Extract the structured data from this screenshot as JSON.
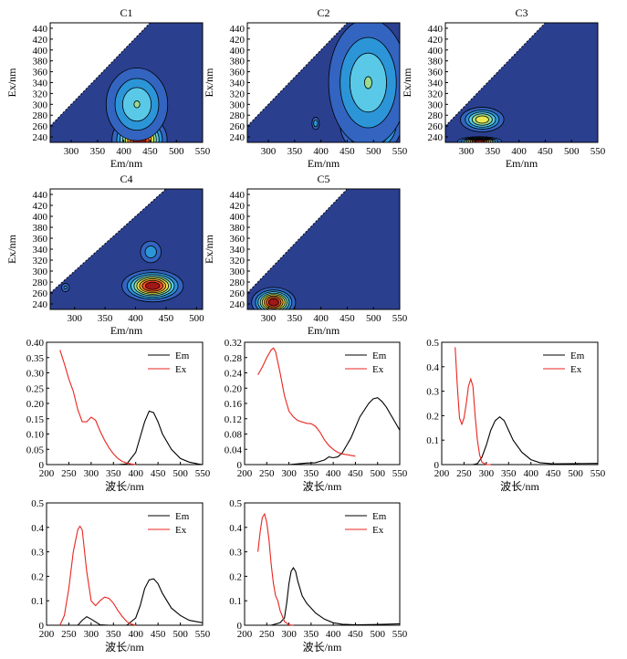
{
  "colors": {
    "background": "#2b3f8f",
    "em_line": "#000000",
    "ex_line": "#e8251f",
    "contour_line": "#000000",
    "contour_levels": [
      "#2b3f8f",
      "#3364c0",
      "#2c95d8",
      "#5ac9e8",
      "#9bdc8f",
      "#eae84f",
      "#f7a02d",
      "#ef4a23",
      "#a01818"
    ]
  },
  "eem_panels": [
    {
      "title": "C1",
      "xlabel": "Em/nm",
      "ylabel": "Ex/nm",
      "xticks": [
        "300",
        "350",
        "400",
        "450",
        "500",
        "550"
      ],
      "yticks": [
        "240",
        "260",
        "280",
        "300",
        "320",
        "340",
        "360",
        "380",
        "400",
        "420",
        "440"
      ],
      "xlim": [
        260,
        550
      ],
      "ylim": [
        230,
        450
      ],
      "peaks": [
        {
          "em": 430,
          "ex": 235,
          "intensity": 1.0,
          "sx": 25,
          "sy": 22
        },
        {
          "em": 425,
          "ex": 300,
          "intensity": 0.45,
          "sx": 35,
          "sy": 40
        }
      ]
    },
    {
      "title": "C2",
      "xlabel": "Em/nm",
      "ylabel": "Ex/nm",
      "xticks": [
        "300",
        "350",
        "400",
        "450",
        "500",
        "550"
      ],
      "yticks": [
        "240",
        "260",
        "280",
        "300",
        "320",
        "340",
        "360",
        "380",
        "400",
        "420",
        "440"
      ],
      "xlim": [
        260,
        550
      ],
      "ylim": [
        230,
        450
      ],
      "peaks": [
        {
          "em": 495,
          "ex": 265,
          "intensity": 1.0,
          "sx": 28,
          "sy": 28
        },
        {
          "em": 490,
          "ex": 340,
          "intensity": 0.45,
          "sx": 45,
          "sy": 70
        },
        {
          "em": 390,
          "ex": 265,
          "intensity": 0.3,
          "sx": 5,
          "sy": 8
        }
      ]
    },
    {
      "title": "C3",
      "xlabel": "Em/nm",
      "ylabel": "Ex/nm",
      "xticks": [
        "300",
        "350",
        "400",
        "450",
        "500",
        "550"
      ],
      "yticks": [
        "240",
        "260",
        "280",
        "300",
        "320",
        "340",
        "360",
        "380",
        "400",
        "420",
        "440"
      ],
      "xlim": [
        260,
        550
      ],
      "ylim": [
        230,
        450
      ],
      "peaks": [
        {
          "em": 330,
          "ex": 272,
          "intensity": 0.65,
          "sx": 22,
          "sy": 12
        },
        {
          "em": 325,
          "ex": 232,
          "intensity": 1.0,
          "sx": 20,
          "sy": 4
        }
      ]
    },
    {
      "title": "C4",
      "xlabel": "Em/nm",
      "ylabel": "Ex/nm",
      "xticks": [
        "300",
        "350",
        "400",
        "450",
        "500"
      ],
      "yticks": [
        "240",
        "260",
        "280",
        "300",
        "320",
        "340",
        "360",
        "380",
        "400",
        "420",
        "440"
      ],
      "xlim": [
        260,
        510
      ],
      "ylim": [
        230,
        450
      ],
      "peaks": [
        {
          "em": 428,
          "ex": 273,
          "intensity": 1.0,
          "sx": 24,
          "sy": 14
        },
        {
          "em": 425,
          "ex": 335,
          "intensity": 0.3,
          "sx": 12,
          "sy": 14
        },
        {
          "em": 285,
          "ex": 270,
          "intensity": 0.25,
          "sx": 5,
          "sy": 6
        }
      ]
    },
    {
      "title": "C5",
      "xlabel": "Em/nm",
      "ylabel": "Ex/nm",
      "xticks": [
        "300",
        "350",
        "400",
        "450",
        "500",
        "550"
      ],
      "yticks": [
        "240",
        "260",
        "280",
        "300",
        "320",
        "340",
        "360",
        "380",
        "400",
        "420",
        "440"
      ],
      "xlim": [
        260,
        550
      ],
      "ylim": [
        230,
        450
      ],
      "peaks": [
        {
          "em": 310,
          "ex": 243,
          "intensity": 1.0,
          "sx": 20,
          "sy": 13
        }
      ]
    }
  ],
  "chart_data": [
    {
      "type": "line",
      "xlabel": "波长/nm",
      "xlim": [
        200,
        550
      ],
      "ylim": [
        0,
        0.4
      ],
      "xticks": [
        "200",
        "250",
        "300",
        "350",
        "400",
        "450",
        "500",
        "550"
      ],
      "yticks": [
        "0",
        "0.05",
        "0.10",
        "0.15",
        "0.20",
        "0.25",
        "0.30",
        "0.35",
        "0.40"
      ],
      "series": [
        {
          "name": "Em",
          "x": [
            260,
            280,
            300,
            320,
            340,
            360,
            380,
            400,
            410,
            420,
            430,
            440,
            450,
            460,
            480,
            500,
            520,
            540,
            550
          ],
          "y": [
            0,
            0,
            0,
            0,
            0,
            0,
            0.002,
            0.04,
            0.09,
            0.14,
            0.175,
            0.17,
            0.14,
            0.1,
            0.05,
            0.02,
            0.008,
            0.002,
            0
          ]
        },
        {
          "name": "Ex",
          "x": [
            230,
            240,
            250,
            260,
            270,
            280,
            290,
            300,
            310,
            320,
            330,
            340,
            350,
            360,
            370,
            380,
            390,
            400
          ],
          "y": [
            0.375,
            0.33,
            0.28,
            0.24,
            0.18,
            0.14,
            0.14,
            0.155,
            0.145,
            0.11,
            0.08,
            0.055,
            0.035,
            0.02,
            0.01,
            0.005,
            0.002,
            0
          ]
        }
      ]
    },
    {
      "type": "line",
      "xlabel": "波长/nm",
      "xlim": [
        200,
        550
      ],
      "ylim": [
        0,
        0.32
      ],
      "xticks": [
        "200",
        "250",
        "300",
        "350",
        "400",
        "450",
        "500",
        "550"
      ],
      "yticks": [
        "0",
        "0.04",
        "0.08",
        "0.12",
        "0.16",
        "0.20",
        "0.24",
        "0.28",
        "0.32"
      ],
      "series": [
        {
          "name": "Em",
          "x": [
            260,
            300,
            320,
            340,
            360,
            380,
            390,
            400,
            410,
            420,
            440,
            460,
            480,
            490,
            500,
            510,
            520,
            540,
            550
          ],
          "y": [
            0,
            0,
            0.002,
            0.004,
            0.005,
            0.012,
            0.02,
            0.018,
            0.02,
            0.03,
            0.07,
            0.125,
            0.16,
            0.172,
            0.175,
            0.165,
            0.15,
            0.11,
            0.09
          ]
        },
        {
          "name": "Ex",
          "x": [
            230,
            240,
            250,
            260,
            265,
            270,
            280,
            290,
            300,
            310,
            320,
            340,
            350,
            360,
            370,
            380,
            390,
            400,
            410,
            420,
            440,
            450
          ],
          "y": [
            0.235,
            0.255,
            0.28,
            0.3,
            0.305,
            0.295,
            0.24,
            0.18,
            0.14,
            0.125,
            0.115,
            0.108,
            0.107,
            0.1,
            0.085,
            0.065,
            0.05,
            0.04,
            0.032,
            0.028,
            0.024,
            0.022
          ]
        }
      ]
    },
    {
      "type": "line",
      "xlabel": "波长/nm",
      "xlim": [
        200,
        550
      ],
      "ylim": [
        0,
        0.5
      ],
      "xticks": [
        "200",
        "250",
        "300",
        "350",
        "400",
        "450",
        "500",
        "550"
      ],
      "yticks": [
        "0",
        "0.1",
        "0.2",
        "0.3",
        "0.4",
        "0.5"
      ],
      "series": [
        {
          "name": "Em",
          "x": [
            250,
            270,
            280,
            290,
            300,
            310,
            320,
            330,
            340,
            350,
            360,
            380,
            400,
            420,
            450,
            500,
            550
          ],
          "y": [
            0,
            0,
            0.004,
            0.03,
            0.08,
            0.14,
            0.18,
            0.195,
            0.18,
            0.14,
            0.1,
            0.05,
            0.02,
            0.008,
            0.003,
            0.004,
            0.005
          ]
        },
        {
          "name": "Ex",
          "x": [
            230,
            235,
            240,
            245,
            250,
            255,
            260,
            265,
            270,
            275,
            280,
            285,
            290,
            300,
            310
          ],
          "y": [
            0.48,
            0.32,
            0.19,
            0.165,
            0.19,
            0.25,
            0.32,
            0.35,
            0.32,
            0.2,
            0.1,
            0.04,
            0.01,
            0,
            0
          ]
        }
      ]
    },
    {
      "type": "line",
      "xlabel": "波长/nm",
      "xlim": [
        200,
        550
      ],
      "ylim": [
        0,
        0.5
      ],
      "xticks": [
        "200",
        "250",
        "300",
        "350",
        "400",
        "450",
        "500",
        "550"
      ],
      "yticks": [
        "0",
        "0.1",
        "0.2",
        "0.3",
        "0.4",
        "0.5"
      ],
      "series": [
        {
          "name": "Em",
          "x": [
            250,
            270,
            280,
            290,
            300,
            320,
            340,
            360,
            380,
            400,
            410,
            420,
            430,
            440,
            450,
            460,
            480,
            500,
            520,
            550
          ],
          "y": [
            0,
            0,
            0.02,
            0.035,
            0.025,
            0.002,
            0,
            0,
            0,
            0.03,
            0.08,
            0.15,
            0.185,
            0.19,
            0.17,
            0.13,
            0.07,
            0.04,
            0.02,
            0.01
          ]
        },
        {
          "name": "Ex",
          "x": [
            230,
            240,
            250,
            260,
            270,
            275,
            280,
            290,
            300,
            310,
            320,
            330,
            340,
            350,
            360,
            370,
            380,
            390,
            400
          ],
          "y": [
            0,
            0.04,
            0.15,
            0.3,
            0.39,
            0.405,
            0.39,
            0.22,
            0.1,
            0.08,
            0.1,
            0.115,
            0.11,
            0.09,
            0.06,
            0.035,
            0.015,
            0.005,
            0
          ]
        }
      ]
    },
    {
      "type": "line",
      "xlabel": "波长/nm",
      "xlim": [
        200,
        550
      ],
      "ylim": [
        0,
        0.5
      ],
      "xticks": [
        "200",
        "250",
        "300",
        "350",
        "400",
        "450",
        "500",
        "550"
      ],
      "yticks": [
        "0",
        "0.1",
        "0.2",
        "0.3",
        "0.4",
        "0.5"
      ],
      "series": [
        {
          "name": "Em",
          "x": [
            260,
            280,
            290,
            295,
            300,
            305,
            310,
            315,
            320,
            330,
            340,
            350,
            360,
            380,
            400,
            420,
            450,
            500,
            550
          ],
          "y": [
            0,
            0.01,
            0.03,
            0.09,
            0.17,
            0.22,
            0.235,
            0.22,
            0.18,
            0.12,
            0.09,
            0.07,
            0.05,
            0.025,
            0.01,
            0.004,
            0.002,
            0.003,
            0.006
          ]
        },
        {
          "name": "Ex",
          "x": [
            230,
            235,
            240,
            245,
            250,
            255,
            260,
            265,
            270,
            275,
            280,
            290,
            300,
            310
          ],
          "y": [
            0.3,
            0.38,
            0.44,
            0.455,
            0.42,
            0.35,
            0.25,
            0.17,
            0.12,
            0.1,
            0.06,
            0.015,
            0.002,
            0
          ]
        }
      ]
    }
  ]
}
